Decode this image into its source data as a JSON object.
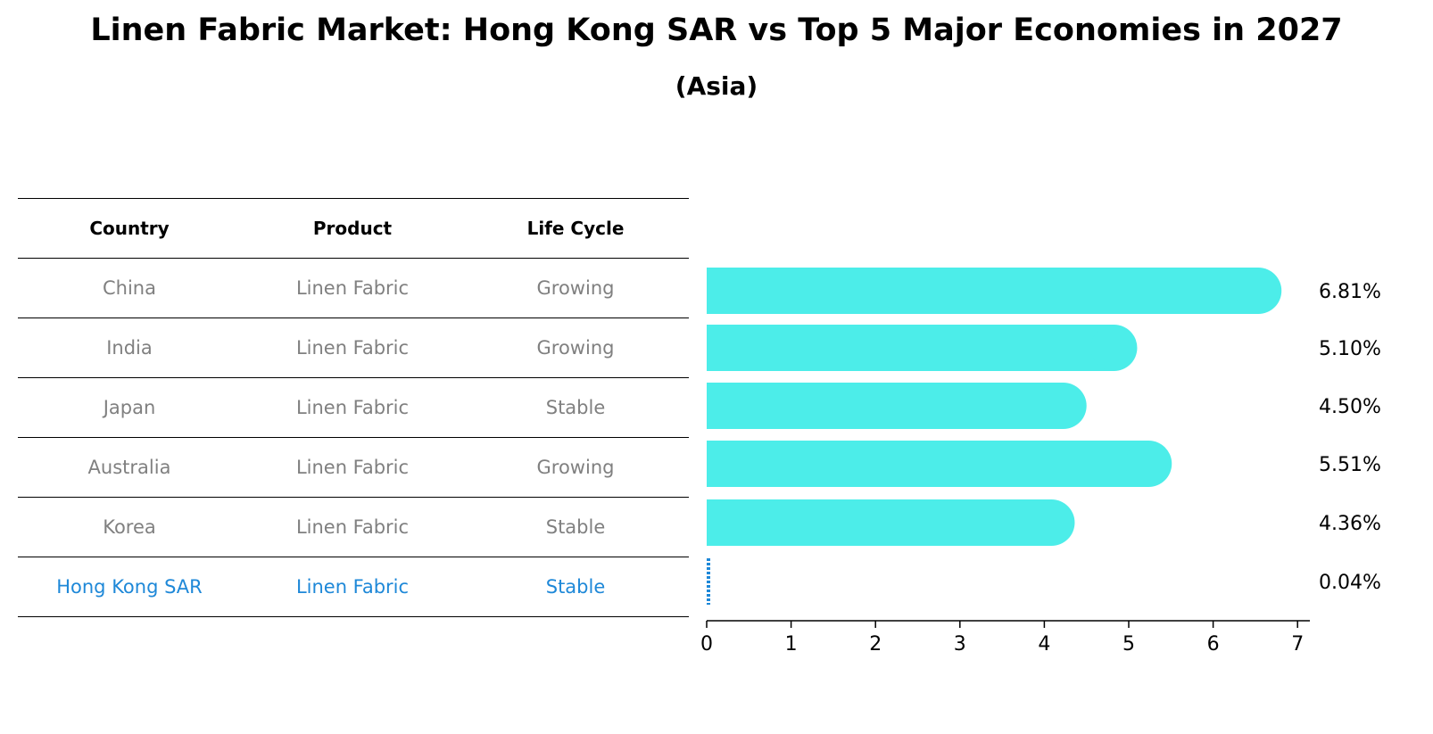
{
  "title": "Linen Fabric Market: Hong Kong SAR vs Top 5 Major Economies in 2027",
  "subtitle": "(Asia)",
  "table": {
    "headers": [
      "Country",
      "Product",
      "Life Cycle"
    ],
    "rows": [
      {
        "country": "China",
        "product": "Linen Fabric",
        "life_cycle": "Growing"
      },
      {
        "country": "India",
        "product": "Linen Fabric",
        "life_cycle": "Growing"
      },
      {
        "country": "Japan",
        "product": "Linen Fabric",
        "life_cycle": "Stable"
      },
      {
        "country": "Australia",
        "product": "Linen Fabric",
        "life_cycle": "Growing"
      },
      {
        "country": "Korea",
        "product": "Linen Fabric",
        "life_cycle": "Stable"
      },
      {
        "country": "Hong Kong SAR",
        "product": "Linen Fabric",
        "life_cycle": "Stable"
      }
    ],
    "highlight_row": 5
  },
  "colors": {
    "bar": "#4cede9",
    "highlight": "#1e88d8",
    "muted_text": "#808080"
  },
  "chart_data": {
    "type": "bar",
    "orientation": "horizontal",
    "categories": [
      "China",
      "India",
      "Japan",
      "Australia",
      "Korea",
      "Hong Kong SAR"
    ],
    "values": [
      6.81,
      5.1,
      4.5,
      5.51,
      4.36,
      0.04
    ],
    "value_labels": [
      "6.81%",
      "5.10%",
      "4.50%",
      "5.51%",
      "4.36%",
      "0.04%"
    ],
    "xlim": [
      0,
      7.15
    ],
    "xticks": [
      0,
      1,
      2,
      3,
      4,
      5,
      6,
      7
    ],
    "grid": false,
    "legend": "none"
  }
}
